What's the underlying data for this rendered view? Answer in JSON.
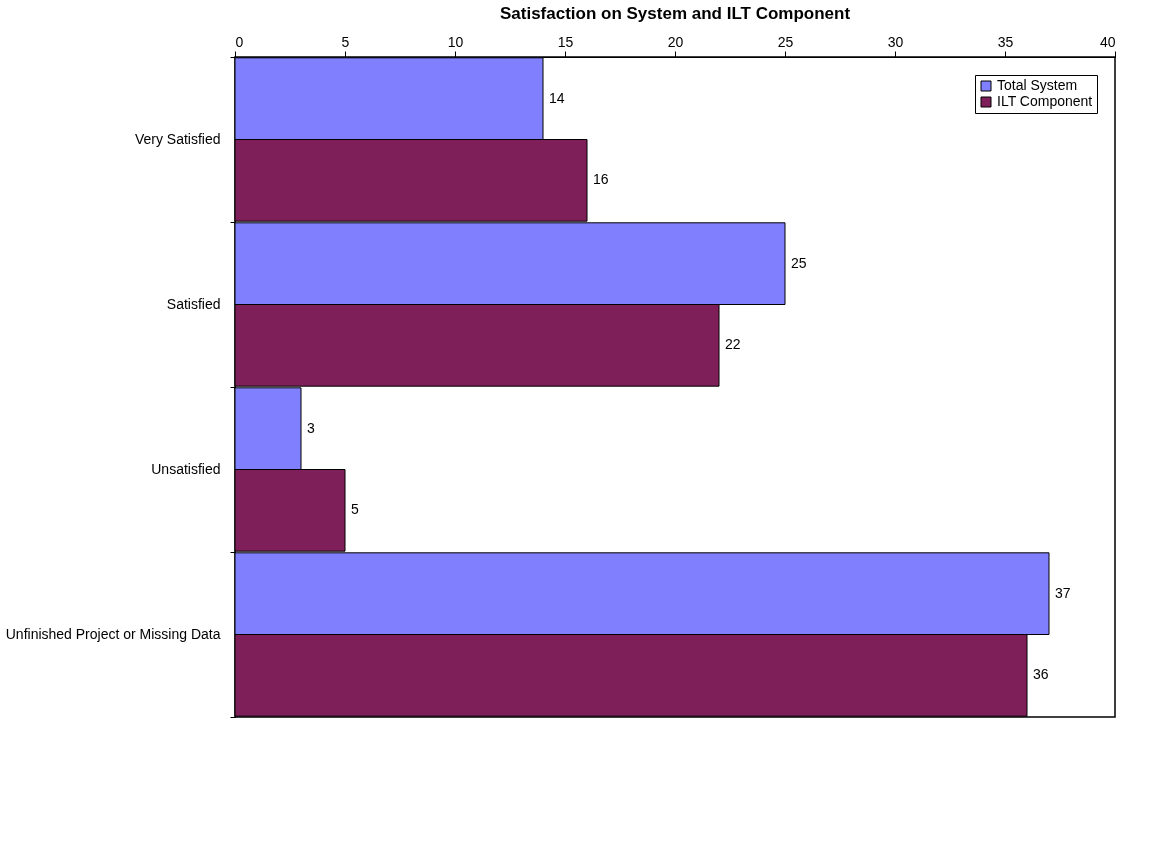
{
  "chart_data": {
    "type": "bar",
    "orientation": "horizontal",
    "title": "Satisfaction on System and ILT Component",
    "categories": [
      "Very Satisfied",
      "Satisfied",
      "Unsatisfied",
      "Unfinished Project or Missing Data"
    ],
    "series": [
      {
        "name": "Total System",
        "color": "#8080ff",
        "values": [
          14,
          25,
          3,
          37
        ]
      },
      {
        "name": "ILT Component",
        "color": "#7f1f5a",
        "values": [
          16,
          22,
          5,
          36
        ]
      }
    ],
    "xlim": [
      0,
      40
    ],
    "xticks": [
      0,
      5,
      10,
      15,
      20,
      25,
      30,
      35,
      40
    ],
    "data_labels": true,
    "legend": "top right",
    "grid": false
  }
}
